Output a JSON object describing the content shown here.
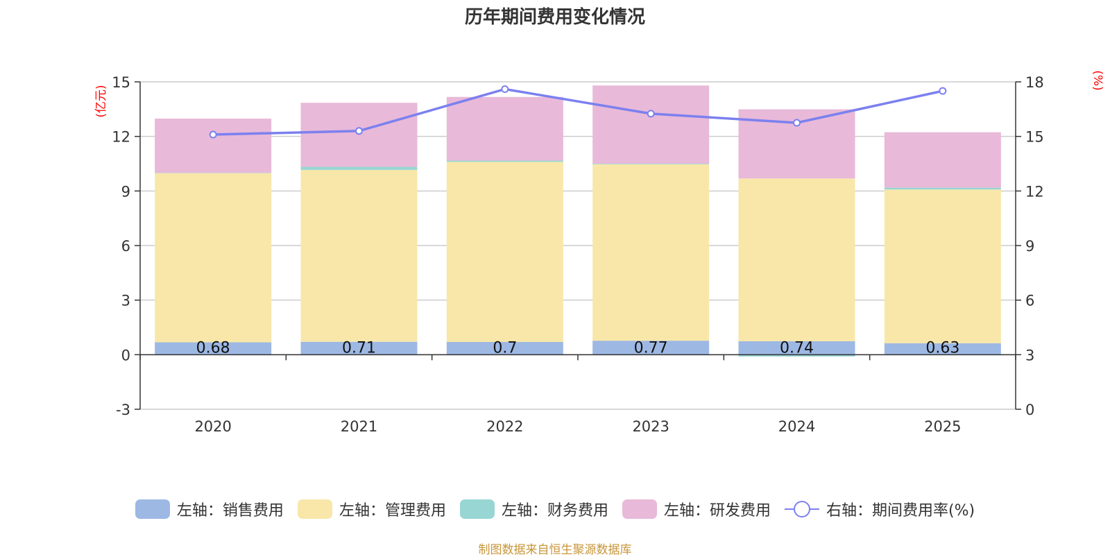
{
  "chart_data": {
    "type": "bar",
    "stacked": true,
    "title": "历年期间费用变化情况",
    "categories": [
      "2020",
      "2021",
      "2022",
      "2023",
      "2024",
      "2025"
    ],
    "left_axis": {
      "unit": "(亿元)",
      "ylim": [
        -3,
        15
      ],
      "ticks": [
        "-3",
        "0",
        "3",
        "6",
        "9",
        "12",
        "15"
      ]
    },
    "right_axis": {
      "unit": "(%)",
      "ylim": [
        0,
        18
      ],
      "ticks": [
        "0",
        "3",
        "6",
        "9",
        "12",
        "15",
        "18"
      ]
    },
    "series": [
      {
        "name": "销售费用",
        "legend": "左轴：销售费用",
        "axis": "left",
        "color": "#9db8e3",
        "values": [
          0.68,
          0.71,
          0.7,
          0.77,
          0.74,
          0.63
        ],
        "labels": [
          "0.68",
          "0.71",
          "0.7",
          "0.77",
          "0.74",
          "0.63"
        ]
      },
      {
        "name": "管理费用",
        "legend": "左轴：管理费用",
        "axis": "left",
        "color": "#f8e7a9",
        "values": [
          9.3,
          9.45,
          9.9,
          9.7,
          8.95,
          8.45
        ]
      },
      {
        "name": "财务费用",
        "legend": "左轴：财务费用",
        "axis": "left",
        "color": "#98d6d4",
        "values": [
          0.02,
          0.17,
          0.07,
          0.03,
          -0.1,
          0.1
        ]
      },
      {
        "name": "研发费用",
        "legend": "左轴：研发费用",
        "axis": "left",
        "color": "#e8b9d9",
        "values": [
          2.98,
          3.52,
          3.5,
          4.3,
          3.8,
          3.05
        ]
      },
      {
        "name": "期间费用率",
        "legend": "右轴：期间费用率(%)",
        "axis": "right",
        "type": "line",
        "color": "#7b80ef",
        "values": [
          15.1,
          15.3,
          17.6,
          16.25,
          15.75,
          17.5
        ]
      }
    ],
    "grid": true,
    "legend_position": "bottom"
  },
  "source": "制图数据来自恒生聚源数据库"
}
